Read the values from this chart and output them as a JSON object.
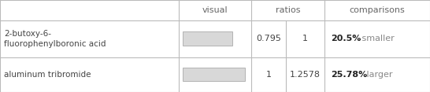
{
  "rows": [
    {
      "name": "2-butoxy-6-\nfluorophenylboronic acid",
      "ratio1": "0.795",
      "ratio2": "1",
      "comparison_bold": "20.5%",
      "comparison_text": " smaller",
      "comparison_color": "#888888",
      "bar_width": 0.795,
      "bar_color": "#d8d8d8",
      "bar_outline": "#aaaaaa"
    },
    {
      "name": "aluminum tribromide",
      "ratio1": "1",
      "ratio2": "1.2578",
      "comparison_bold": "25.78%",
      "comparison_text": " larger",
      "comparison_color": "#888888",
      "bar_width": 1.0,
      "bar_color": "#d8d8d8",
      "bar_outline": "#aaaaaa"
    }
  ],
  "header": [
    "",
    "visual",
    "ratios",
    "comparisons"
  ],
  "bg_color": "#ffffff",
  "grid_color": "#bbbbbb",
  "text_color": "#444444",
  "header_color": "#666666",
  "bold_color": "#222222"
}
